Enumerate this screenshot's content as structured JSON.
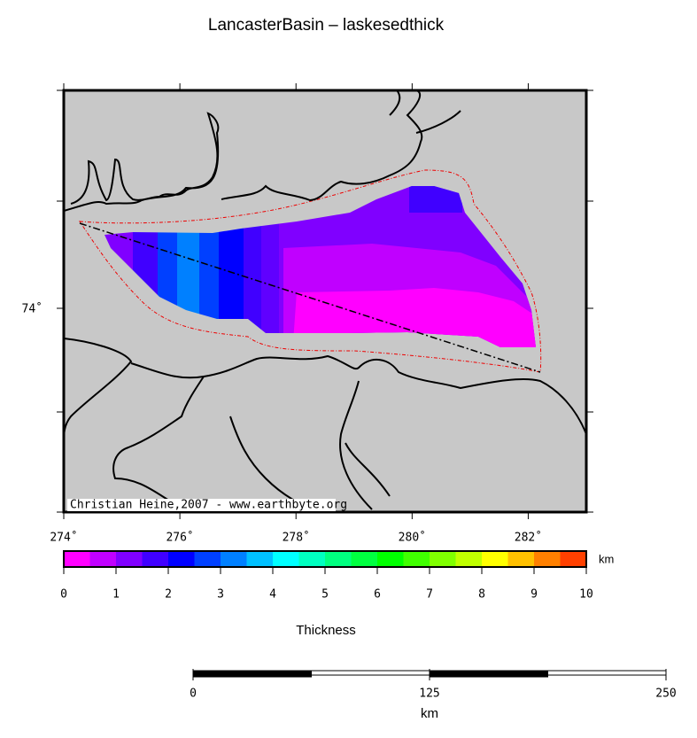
{
  "title": "LancasterBasin – laskesedthick",
  "map": {
    "xlim": [
      274,
      283
    ],
    "xticks": [
      {
        "value": 274,
        "label": "274˚"
      },
      {
        "value": 276,
        "label": "276˚"
      },
      {
        "value": 278,
        "label": "278˚"
      },
      {
        "value": 280,
        "label": "280˚"
      },
      {
        "value": 282,
        "label": "282˚"
      }
    ],
    "ytick": {
      "value": 74,
      "label": "74˚"
    },
    "credit": "Christian Heine,2007 - www.earthbyte.org"
  },
  "colorbar": {
    "label": "Thickness",
    "unit": "km",
    "range": [
      0,
      10
    ],
    "ticks": [
      0,
      1,
      2,
      3,
      4,
      5,
      6,
      7,
      8,
      9,
      10
    ],
    "colors": [
      "#ff00ff",
      "#c000ff",
      "#8000ff",
      "#4000ff",
      "#0000ff",
      "#0040ff",
      "#0080ff",
      "#00c0ff",
      "#00ffff",
      "#00ffc0",
      "#00ff80",
      "#00ff40",
      "#00ff00",
      "#40ff00",
      "#80ff00",
      "#c0ff00",
      "#ffff00",
      "#ffc000",
      "#ff8000",
      "#ff4000"
    ]
  },
  "scalebar": {
    "unit": "km",
    "range": [
      0,
      250
    ],
    "ticks": [
      0,
      125,
      250
    ]
  }
}
